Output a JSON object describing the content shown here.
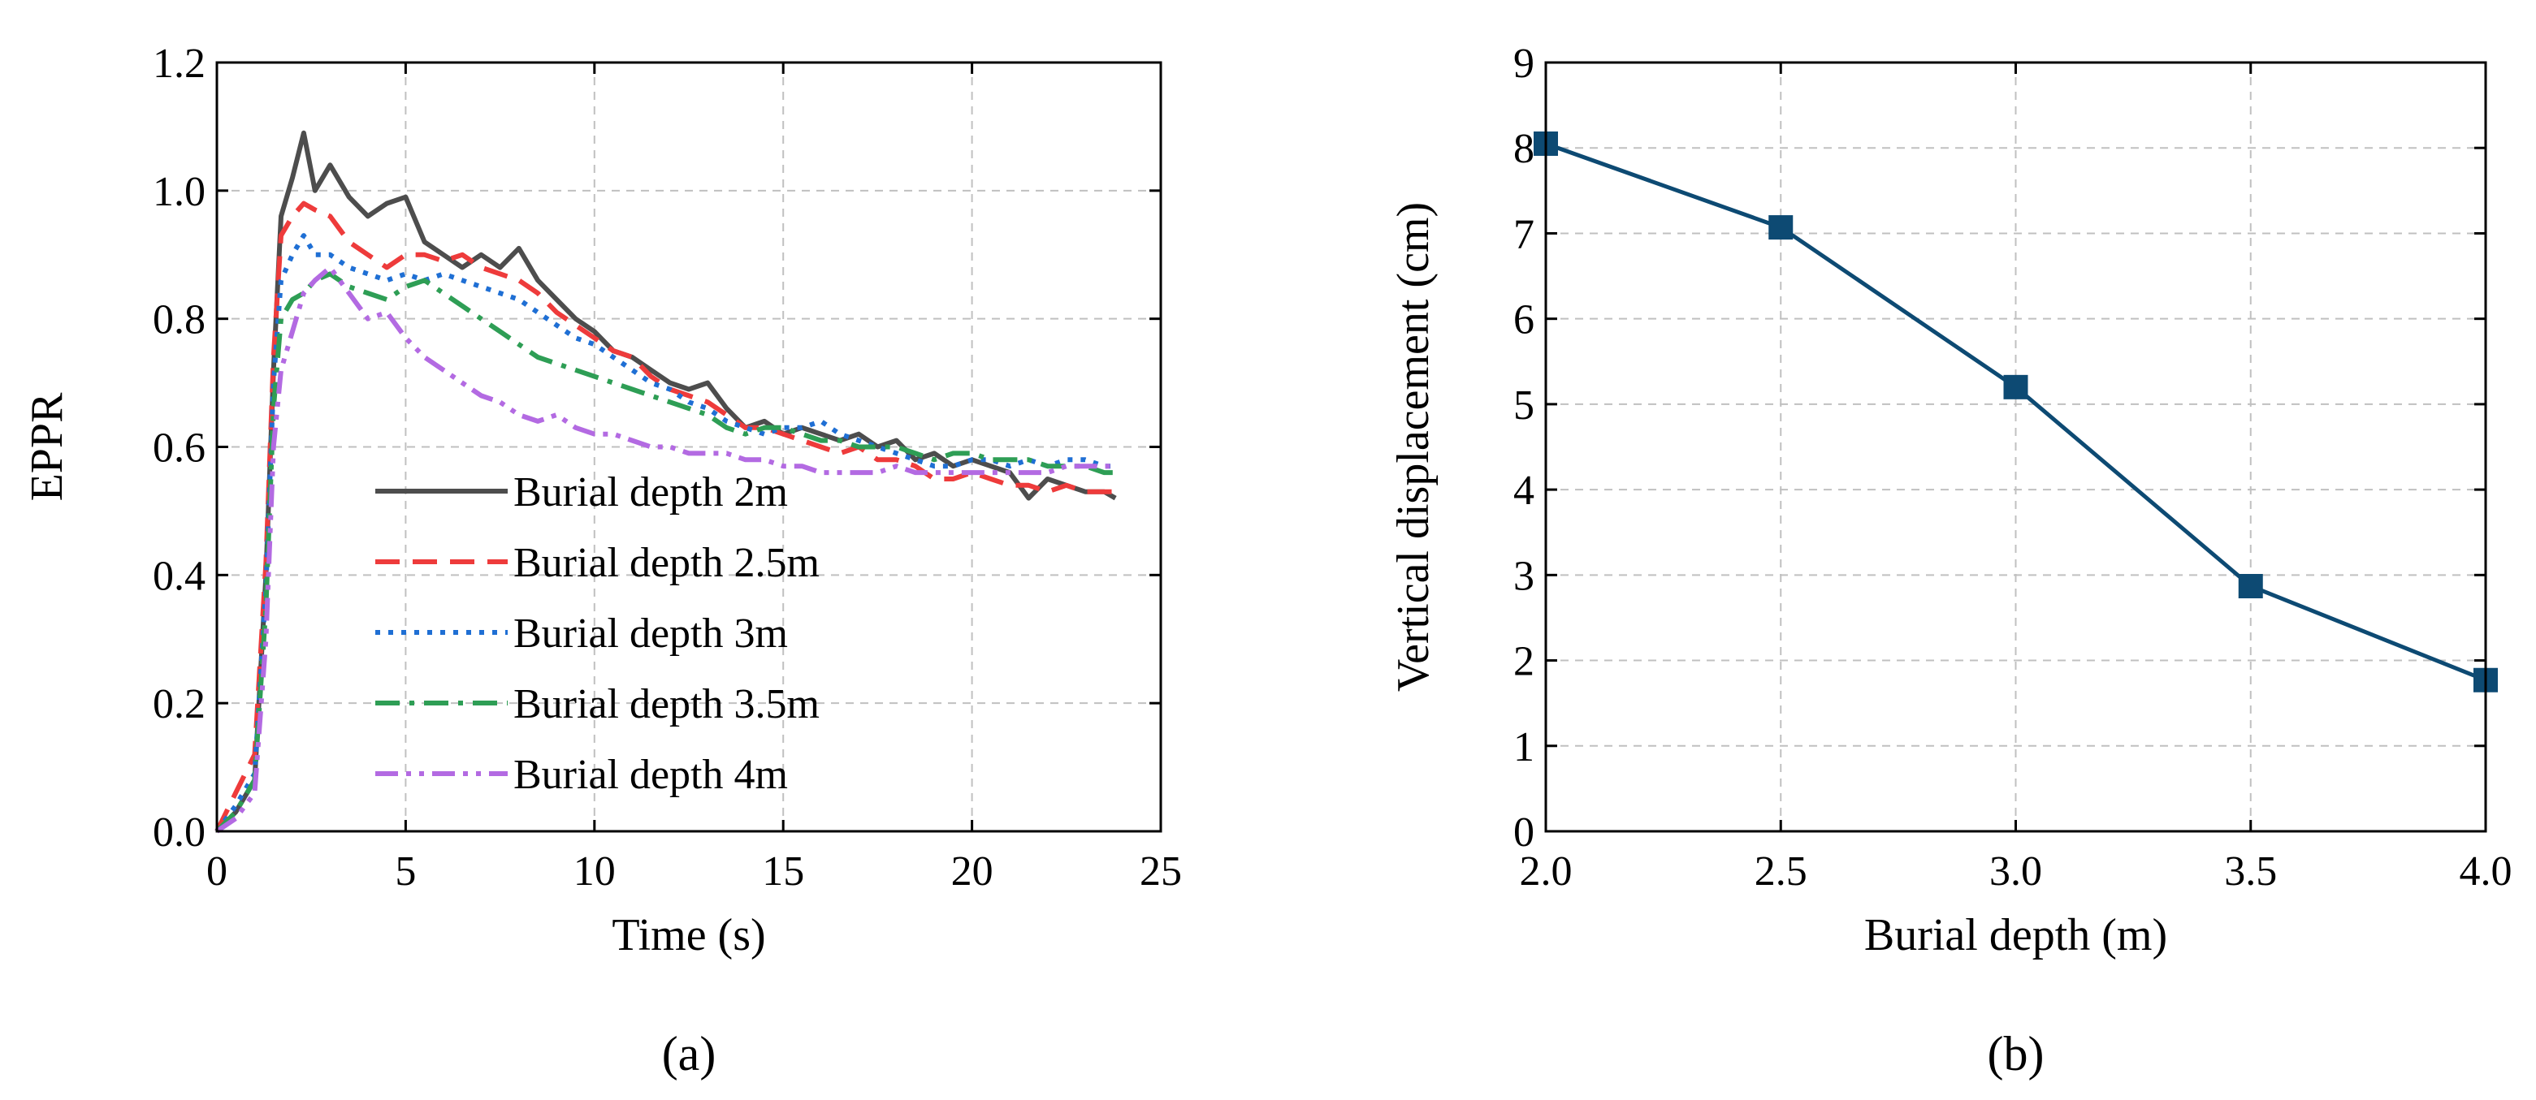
{
  "chart_data": [
    {
      "panel_label": "(a)",
      "type": "line",
      "title": "",
      "xlabel": "Time (s)",
      "ylabel": "EPPR",
      "xlim": [
        0,
        25
      ],
      "ylim": [
        0,
        1.2
      ],
      "xticks": [
        0,
        5,
        10,
        15,
        20,
        25
      ],
      "xtick_labels": [
        "0",
        "5",
        "10",
        "15",
        "20",
        "25"
      ],
      "yticks": [
        0,
        0.2,
        0.4,
        0.6,
        0.8,
        1.0,
        1.2
      ],
      "ytick_labels": [
        "0.0",
        "0.2",
        "0.4",
        "0.6",
        "0.8",
        "1.0",
        "1.2"
      ],
      "grid": true,
      "legend_position": "lower-left",
      "series": [
        {
          "name": "Burial depth 2m",
          "color": "#4d4d4d",
          "dash": "solid",
          "x": [
            0,
            0.5,
            1.0,
            1.3,
            1.5,
            1.7,
            2.0,
            2.3,
            2.6,
            3.0,
            3.5,
            4.0,
            4.5,
            5.0,
            5.5,
            6.0,
            6.5,
            7.0,
            7.5,
            8.0,
            8.5,
            9.0,
            9.5,
            10.0,
            10.5,
            11.0,
            11.5,
            12.0,
            12.5,
            13.0,
            13.5,
            14.0,
            14.5,
            15.0,
            15.5,
            16.0,
            16.5,
            17.0,
            17.5,
            18.0,
            18.5,
            19.0,
            19.5,
            20.0,
            20.5,
            21.0,
            21.5,
            22.0,
            22.5,
            23.0,
            23.5,
            23.8
          ],
          "y": [
            0,
            0.03,
            0.08,
            0.4,
            0.72,
            0.96,
            1.02,
            1.09,
            1.0,
            1.04,
            0.99,
            0.96,
            0.98,
            0.99,
            0.92,
            0.9,
            0.88,
            0.9,
            0.88,
            0.91,
            0.86,
            0.83,
            0.8,
            0.78,
            0.75,
            0.74,
            0.72,
            0.7,
            0.69,
            0.7,
            0.66,
            0.63,
            0.64,
            0.62,
            0.63,
            0.62,
            0.61,
            0.62,
            0.6,
            0.61,
            0.58,
            0.59,
            0.57,
            0.58,
            0.57,
            0.56,
            0.52,
            0.55,
            0.54,
            0.53,
            0.53,
            0.52
          ]
        },
        {
          "name": "Burial depth 2.5m",
          "color": "#ee3b3b",
          "dash": "dash",
          "x": [
            0,
            0.5,
            1.0,
            1.3,
            1.5,
            1.7,
            2.0,
            2.3,
            2.6,
            3.0,
            3.5,
            4.0,
            4.5,
            5.0,
            5.5,
            6.0,
            6.5,
            7.0,
            7.5,
            8.0,
            8.5,
            9.0,
            9.5,
            10.0,
            10.5,
            11.0,
            11.5,
            12.0,
            12.5,
            13.0,
            13.5,
            14.0,
            14.5,
            15.0,
            15.5,
            16.0,
            16.5,
            17.0,
            17.5,
            18.0,
            18.5,
            19.0,
            19.5,
            20.0,
            20.5,
            21.0,
            21.5,
            22.0,
            22.5,
            23.0,
            23.5,
            23.8
          ],
          "y": [
            0,
            0.06,
            0.12,
            0.42,
            0.74,
            0.93,
            0.96,
            0.98,
            0.97,
            0.96,
            0.92,
            0.9,
            0.88,
            0.9,
            0.9,
            0.89,
            0.9,
            0.88,
            0.87,
            0.86,
            0.84,
            0.81,
            0.79,
            0.77,
            0.75,
            0.74,
            0.71,
            0.69,
            0.68,
            0.67,
            0.65,
            0.63,
            0.63,
            0.62,
            0.61,
            0.6,
            0.59,
            0.6,
            0.58,
            0.58,
            0.57,
            0.55,
            0.55,
            0.56,
            0.55,
            0.54,
            0.54,
            0.53,
            0.54,
            0.53,
            0.53,
            0.53
          ]
        },
        {
          "name": "Burial depth 3m",
          "color": "#1f6fd4",
          "dash": "dot",
          "x": [
            0,
            0.5,
            1.0,
            1.3,
            1.5,
            1.7,
            2.0,
            2.3,
            2.6,
            3.0,
            3.5,
            4.0,
            4.5,
            5.0,
            5.5,
            6.0,
            6.5,
            7.0,
            7.5,
            8.0,
            8.5,
            9.0,
            9.5,
            10.0,
            10.5,
            11.0,
            11.5,
            12.0,
            12.5,
            13.0,
            13.5,
            14.0,
            14.5,
            15.0,
            15.5,
            16.0,
            16.5,
            17.0,
            17.5,
            18.0,
            18.5,
            19.0,
            19.5,
            20.0,
            20.5,
            21.0,
            21.5,
            22.0,
            22.5,
            23.0,
            23.5,
            23.8
          ],
          "y": [
            0,
            0.04,
            0.09,
            0.38,
            0.7,
            0.86,
            0.9,
            0.93,
            0.9,
            0.9,
            0.88,
            0.87,
            0.86,
            0.87,
            0.86,
            0.87,
            0.86,
            0.85,
            0.84,
            0.83,
            0.81,
            0.79,
            0.77,
            0.76,
            0.74,
            0.72,
            0.7,
            0.69,
            0.67,
            0.66,
            0.64,
            0.63,
            0.62,
            0.63,
            0.63,
            0.64,
            0.62,
            0.61,
            0.6,
            0.59,
            0.58,
            0.57,
            0.57,
            0.58,
            0.58,
            0.57,
            0.58,
            0.57,
            0.58,
            0.58,
            0.57,
            0.57
          ]
        },
        {
          "name": "Burial depth 3.5m",
          "color": "#2e9e55",
          "dash": "dashdot",
          "x": [
            0,
            0.5,
            1.0,
            1.3,
            1.5,
            1.7,
            2.0,
            2.3,
            2.6,
            3.0,
            3.5,
            4.0,
            4.5,
            5.0,
            5.5,
            6.0,
            6.5,
            7.0,
            7.5,
            8.0,
            8.5,
            9.0,
            9.5,
            10.0,
            10.5,
            11.0,
            11.5,
            12.0,
            12.5,
            13.0,
            13.5,
            14.0,
            14.5,
            15.0,
            15.5,
            16.0,
            16.5,
            17.0,
            17.5,
            18.0,
            18.5,
            19.0,
            19.5,
            20.0,
            20.5,
            21.0,
            21.5,
            22.0,
            22.5,
            23.0,
            23.5,
            23.8
          ],
          "y": [
            0,
            0.03,
            0.08,
            0.35,
            0.66,
            0.8,
            0.83,
            0.84,
            0.86,
            0.87,
            0.85,
            0.84,
            0.83,
            0.85,
            0.86,
            0.84,
            0.82,
            0.8,
            0.78,
            0.76,
            0.74,
            0.73,
            0.72,
            0.71,
            0.7,
            0.69,
            0.68,
            0.67,
            0.66,
            0.65,
            0.63,
            0.62,
            0.63,
            0.63,
            0.62,
            0.61,
            0.61,
            0.6,
            0.6,
            0.6,
            0.59,
            0.58,
            0.59,
            0.59,
            0.58,
            0.58,
            0.58,
            0.57,
            0.57,
            0.57,
            0.56,
            0.56
          ]
        },
        {
          "name": "Burial depth 4m",
          "color": "#b36ae2",
          "dash": "dashdotdot",
          "x": [
            0,
            0.5,
            1.0,
            1.3,
            1.5,
            1.7,
            2.0,
            2.3,
            2.6,
            3.0,
            3.5,
            4.0,
            4.5,
            5.0,
            5.5,
            6.0,
            6.5,
            7.0,
            7.5,
            8.0,
            8.5,
            9.0,
            9.5,
            10.0,
            10.5,
            11.0,
            11.5,
            12.0,
            12.5,
            13.0,
            13.5,
            14.0,
            14.5,
            15.0,
            15.5,
            16.0,
            16.5,
            17.0,
            17.5,
            18.0,
            18.5,
            19.0,
            19.5,
            20.0,
            20.5,
            21.0,
            21.5,
            22.0,
            22.5,
            23.0,
            23.5,
            23.8
          ],
          "y": [
            0,
            0.02,
            0.06,
            0.3,
            0.6,
            0.72,
            0.78,
            0.84,
            0.86,
            0.88,
            0.84,
            0.8,
            0.81,
            0.77,
            0.74,
            0.72,
            0.7,
            0.68,
            0.67,
            0.65,
            0.64,
            0.65,
            0.63,
            0.62,
            0.62,
            0.61,
            0.6,
            0.6,
            0.59,
            0.59,
            0.59,
            0.58,
            0.58,
            0.57,
            0.57,
            0.56,
            0.56,
            0.56,
            0.56,
            0.57,
            0.56,
            0.56,
            0.56,
            0.56,
            0.56,
            0.56,
            0.56,
            0.56,
            0.57,
            0.57,
            0.57,
            0.57
          ]
        }
      ]
    },
    {
      "panel_label": "(b)",
      "type": "line",
      "title": "",
      "xlabel": "Burial depth (m)",
      "ylabel": "Vertical displacement (cm)",
      "xlim": [
        2.0,
        4.0
      ],
      "ylim": [
        0,
        9
      ],
      "xticks": [
        2.0,
        2.5,
        3.0,
        3.5,
        4.0
      ],
      "xtick_labels": [
        "2.0",
        "2.5",
        "3.0",
        "3.5",
        "4.0"
      ],
      "yticks": [
        0,
        1,
        2,
        3,
        4,
        5,
        6,
        7,
        8,
        9
      ],
      "ytick_labels": [
        "0",
        "1",
        "2",
        "3",
        "4",
        "5",
        "6",
        "7",
        "8",
        "9"
      ],
      "grid": true,
      "series": [
        {
          "name": "Vertical displacement",
          "color": "#0d4a73",
          "marker": "square",
          "x": [
            2.0,
            2.5,
            3.0,
            3.5,
            4.0
          ],
          "y": [
            8.05,
            7.07,
            5.2,
            2.87,
            1.77
          ]
        }
      ]
    }
  ]
}
